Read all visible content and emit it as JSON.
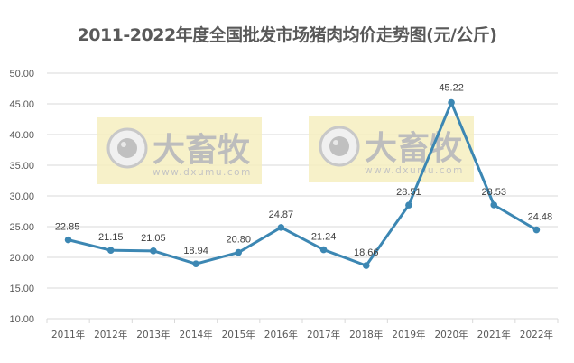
{
  "chart_data": {
    "type": "line",
    "title": "2011-2022年度全国批发市场猪肉均价走势图(元/公斤)",
    "xlabel": "",
    "ylabel": "",
    "categories": [
      "2011年",
      "2012年",
      "2013年",
      "2014年",
      "2015年",
      "2016年",
      "2017年",
      "2018年",
      "2019年",
      "2020年",
      "2021年",
      "2022年"
    ],
    "series": [
      {
        "name": "猪肉均价",
        "values": [
          22.85,
          21.15,
          21.05,
          18.94,
          20.8,
          24.87,
          21.24,
          18.66,
          28.51,
          45.22,
          28.53,
          24.48
        ],
        "color": "#3c87b3"
      }
    ],
    "data_labels": [
      "22.85",
      "21.15",
      "21.05",
      "18.94",
      "20.80",
      "24.87",
      "21.24",
      "18.66",
      "28.51",
      "45.22",
      "28.53",
      "24.48"
    ],
    "yticks": [
      "10.00",
      "15.00",
      "20.00",
      "25.00",
      "30.00",
      "35.00",
      "40.00",
      "45.00",
      "50.00"
    ],
    "ylim": [
      10,
      50
    ],
    "grid": true,
    "legend": "none"
  },
  "watermark": {
    "brand": "大畜牧",
    "url": "www.dxumu.com"
  },
  "colors": {
    "line": "#3c87b3",
    "grid": "#d9d9d9",
    "watermark_bg": "#f6efbf"
  }
}
